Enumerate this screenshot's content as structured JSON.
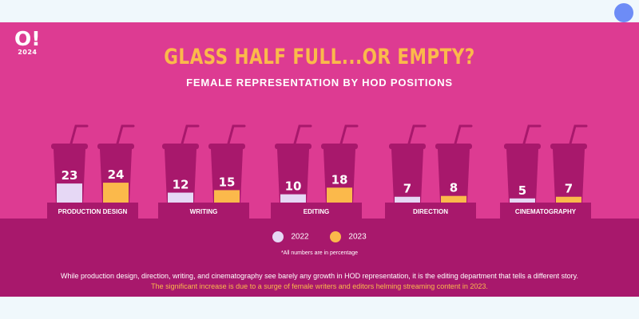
{
  "logo": {
    "mark": "O!",
    "year": "2024"
  },
  "header": {
    "title": "GLASS HALF FULL...OR EMPTY?",
    "subtitle": "FEMALE REPRESENTATION BY HOD POSITIONS"
  },
  "legend": {
    "label_2022": "2022",
    "label_2023": "2023"
  },
  "footnote": "*All numbers are in percentage",
  "caption": {
    "line1": "While production design, direction, writing, and cinematography see barely any growth in HOD representation, it is the editing department that tells a different story.",
    "line2": "The significant increase is due to a surge of female writers and editors helming streaming content in 2023."
  },
  "colors": {
    "background": "#dd3b92",
    "band": "#a8186c",
    "cup": "#a8186c",
    "fill_2022": "#e6d8f5",
    "fill_2023": "#fbb94b",
    "title": "#fbb94b",
    "marker": "#6d8cf6"
  },
  "chart_data": {
    "type": "bar",
    "categories": [
      "PRODUCTION DESIGN",
      "WRITING",
      "EDITING",
      "DIRECTION",
      "CINEMATOGRAPHY"
    ],
    "series": [
      {
        "name": "2022",
        "values": [
          23,
          12,
          10,
          7,
          5
        ]
      },
      {
        "name": "2023",
        "values": [
          24,
          15,
          18,
          8,
          7
        ]
      }
    ],
    "unit": "percentage",
    "ylim": [
      0,
      100
    ],
    "title": "GLASS HALF FULL...OR EMPTY?",
    "subtitle": "FEMALE REPRESENTATION BY HOD POSITIONS"
  }
}
